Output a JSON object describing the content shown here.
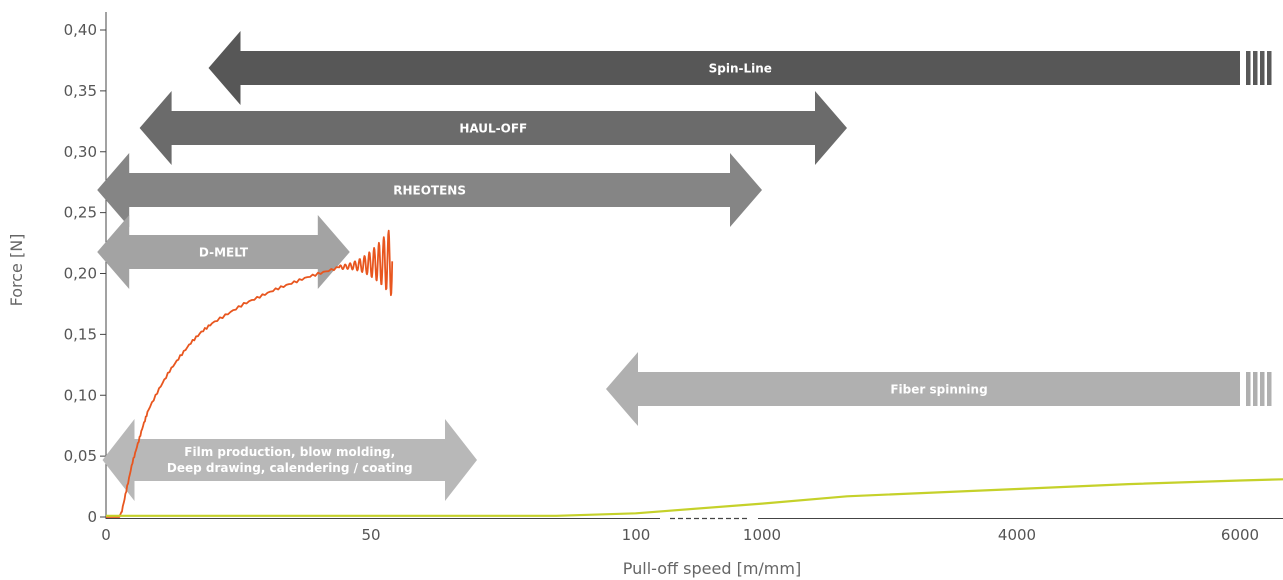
{
  "chart_data": {
    "type": "line",
    "title": "",
    "xlabel": "Pull-off speed [m/mm]",
    "ylabel": "Force [N]",
    "ylim": [
      0,
      0.4
    ],
    "x_ticks": [
      "0",
      "50",
      "100",
      "1000",
      "4000",
      "6000"
    ],
    "y_ticks": [
      "0",
      "0,05",
      "0,10",
      "0,15",
      "0,20",
      "0,25",
      "0,30",
      "0,35",
      "0,40"
    ],
    "grid": false,
    "series": [
      {
        "color": "#e8561f",
        "x_unit": "m/mm",
        "points": [
          [
            0,
            0
          ],
          [
            2.5,
            0
          ],
          [
            3,
            0.005
          ],
          [
            4,
            0.025
          ],
          [
            5,
            0.045
          ],
          [
            6,
            0.06
          ],
          [
            7,
            0.075
          ],
          [
            8,
            0.088
          ],
          [
            10,
            0.105
          ],
          [
            12,
            0.12
          ],
          [
            14,
            0.132
          ],
          [
            16,
            0.143
          ],
          [
            18,
            0.152
          ],
          [
            20,
            0.159
          ],
          [
            23,
            0.167
          ],
          [
            26,
            0.175
          ],
          [
            29,
            0.181
          ],
          [
            32,
            0.187
          ],
          [
            35,
            0.192
          ],
          [
            38,
            0.197
          ],
          [
            41,
            0.201
          ],
          [
            44,
            0.205
          ],
          [
            46,
            0.207
          ],
          [
            48,
            0.209
          ],
          [
            50,
            0.211
          ],
          [
            52,
            0.213
          ],
          [
            53,
            0.216
          ],
          [
            54,
            0.22
          ]
        ]
      },
      {
        "color": "#c5d12a",
        "points": [
          [
            0,
            0.001
          ],
          [
            50,
            0.001
          ],
          [
            85,
            0.001
          ],
          [
            100,
            0.003
          ],
          [
            1000,
            0.011
          ],
          [
            2000,
            0.017
          ],
          [
            4000,
            0.023
          ],
          [
            5000,
            0.027
          ],
          [
            6000,
            0.03
          ],
          [
            6500,
            0.031
          ]
        ]
      }
    ],
    "ranges": [
      {
        "label": "Spin-Line",
        "from": 25,
        "to": "6000+",
        "open_end": true,
        "color": "#575757"
      },
      {
        "label": "HAUL-OFF",
        "from": 12,
        "to": 2000,
        "color": "#6b6b6b"
      },
      {
        "label": "RHEOTENS",
        "from": 4,
        "to": 1000,
        "color": "#858585"
      },
      {
        "label": "D-MELT",
        "from": 4,
        "to": 46,
        "color": "#a3a3a3"
      },
      {
        "label": "Fiber spinning",
        "from": 100,
        "to": "6000+",
        "open_end": true,
        "color": "#b0b0b0"
      },
      {
        "label_lines": [
          "Film production, blow molding,",
          "Deep drawing, calendering / coating"
        ],
        "from": 5,
        "to": 70,
        "color": "#b8b8b8"
      }
    ]
  }
}
